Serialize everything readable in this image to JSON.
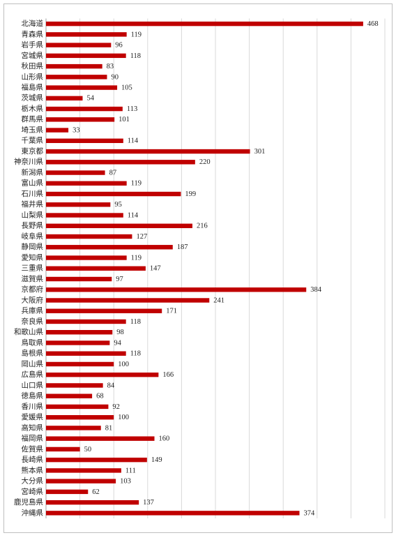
{
  "chart_data": {
    "type": "bar",
    "orientation": "horizontal",
    "categories": [
      "北海道",
      "青森県",
      "岩手県",
      "宮城県",
      "秋田県",
      "山形県",
      "福島県",
      "茨城県",
      "栃木県",
      "群馬県",
      "埼玉県",
      "千葉県",
      "東京都",
      "神奈川県",
      "新潟県",
      "富山県",
      "石川県",
      "福井県",
      "山梨県",
      "長野県",
      "岐阜県",
      "静岡県",
      "愛知県",
      "三重県",
      "滋賀県",
      "京都府",
      "大阪府",
      "兵庫県",
      "奈良県",
      "和歌山県",
      "鳥取県",
      "島根県",
      "岡山県",
      "広島県",
      "山口県",
      "徳島県",
      "香川県",
      "愛媛県",
      "高知県",
      "福岡県",
      "佐賀県",
      "長崎県",
      "熊本県",
      "大分県",
      "宮崎県",
      "鹿児島県",
      "沖縄県"
    ],
    "values": [
      468,
      119,
      96,
      118,
      83,
      90,
      105,
      54,
      113,
      101,
      33,
      114,
      301,
      220,
      87,
      119,
      199,
      95,
      114,
      216,
      127,
      187,
      119,
      147,
      97,
      384,
      241,
      171,
      118,
      98,
      94,
      118,
      100,
      166,
      84,
      68,
      92,
      100,
      81,
      160,
      50,
      149,
      111,
      103,
      62,
      137,
      374
    ],
    "color": "#c00000",
    "xlim": [
      0,
      500
    ],
    "xticks": [
      0,
      50,
      100,
      150,
      200,
      250,
      300,
      350,
      400,
      450,
      500
    ],
    "grid": true
  }
}
